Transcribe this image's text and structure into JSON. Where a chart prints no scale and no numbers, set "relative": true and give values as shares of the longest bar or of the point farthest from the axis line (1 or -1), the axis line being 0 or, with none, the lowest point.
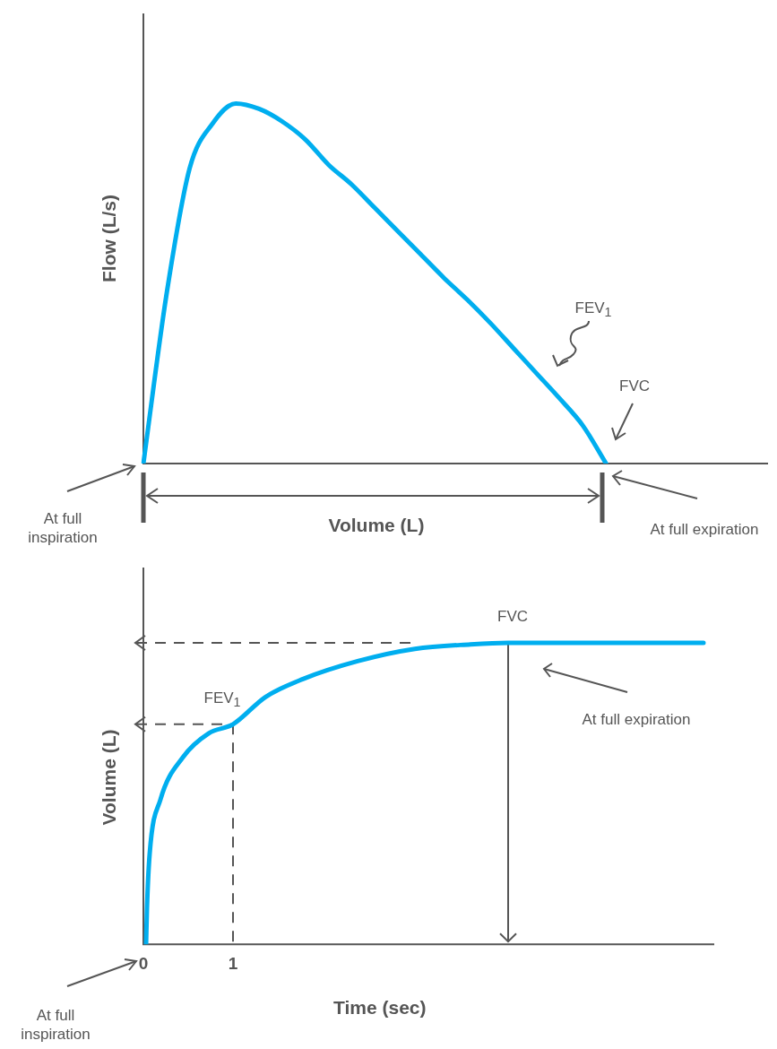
{
  "chart_data": [
    {
      "type": "line",
      "xlabel": "Volume (L)",
      "ylabel": "Flow (L/s)",
      "relative": true,
      "tick_labels": false,
      "categories": [
        null,
        null,
        null,
        null,
        null,
        null,
        null,
        null,
        null,
        null,
        null,
        null,
        null,
        null,
        null,
        null,
        null,
        null,
        null,
        null,
        null,
        null,
        null,
        null,
        null,
        null,
        null,
        null
      ],
      "series": [
        {
          "color": "#00aeef",
          "values": [
            0,
            0.47,
            0.82,
            0.945,
            1,
            0.985,
            0.95,
            0.9,
            0.83,
            0.775,
            0.71,
            0.645,
            0.58,
            0.515,
            0.455,
            0.39,
            0.32,
            0.25,
            0.18,
            0.105,
            0,
            null,
            null,
            null,
            null,
            null,
            null,
            null
          ]
        }
      ],
      "annotations": [
        "FEV$_{1}$",
        "FVC",
        "At full inspiration",
        "At full expiration"
      ]
    },
    {
      "type": "line",
      "xlabel": "Time (sec)",
      "ylabel": "Volume (L)",
      "relative": true,
      "tick_labels": "x",
      "xlim": [
        0,
        6.37
      ],
      "xticks": [
        0,
        1
      ],
      "series": [
        {
          "color": "#00aeef",
          "x": [
            0.03,
            0.04,
            0.07,
            0.19,
            0.44,
            0.73,
            1,
            1.36,
            1.78,
            2.4,
            3.03,
            3.65,
            4.07,
            6.25
          ],
          "values": [
            0,
            0.12,
            0.3,
            0.48,
            0.62,
            0.7,
            0.73,
            0.82,
            0.88,
            0.94,
            0.98,
            0.995,
            1,
            1
          ]
        }
      ],
      "ref_lines": [
        {
          "axis": "x",
          "value": 1,
          "line_style": "dashed"
        },
        {
          "axis": "y",
          "value": 0.73,
          "label": "FEV$_{1}$",
          "line_style": "dashed"
        },
        {
          "axis": "y",
          "value": 1,
          "line_style": "dashed"
        },
        {
          "axis": "x",
          "value": 4.07,
          "label": "FVC"
        }
      ],
      "annotations": [
        "At full expiration",
        "At full inspiration"
      ]
    }
  ]
}
